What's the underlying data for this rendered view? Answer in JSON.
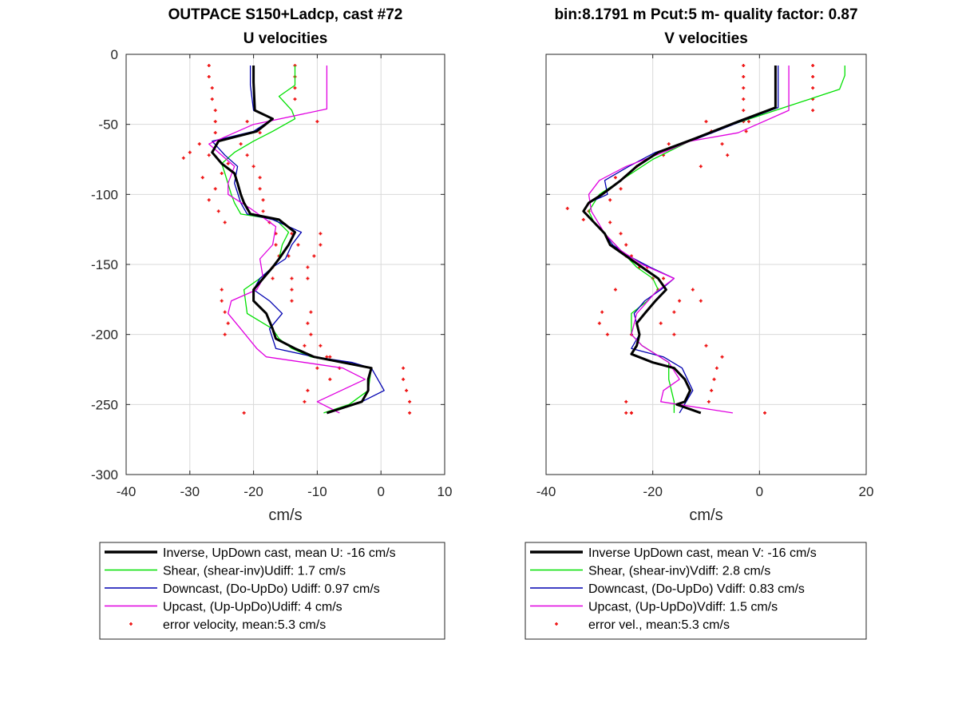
{
  "chart_data": [
    {
      "type": "line",
      "title": [
        "OUTPACE S150+Ladcp, cast #72",
        "U velocities"
      ],
      "xlabel": "cm/s",
      "ylabel": "",
      "xlim": [
        -40,
        10
      ],
      "ylim": [
        -300,
        0
      ],
      "xticks": [
        -40,
        -30,
        -20,
        -10,
        0,
        10
      ],
      "yticks": [
        0,
        -50,
        -100,
        -150,
        -200,
        -250,
        -300
      ],
      "xtick_labels": [
        "-40",
        "-30",
        "-20",
        "-10",
        "0",
        "10"
      ],
      "ytick_labels": [
        "0",
        "-50",
        "-100",
        "-150",
        "-200",
        "-250",
        "-300"
      ],
      "grid": true,
      "legend_position": "below",
      "series": [
        {
          "name": "Inverse, UpDown cast, mean U:  -16 cm/s",
          "color": "#000000",
          "style": "line-thick",
          "x": [
            -20,
            -20,
            -19.8,
            -17,
            -19.5,
            -25.5,
            -26.5,
            -25,
            -23,
            -22.5,
            -22,
            -21.5,
            -20.5,
            -16,
            -13.5,
            -14.5,
            -16,
            -17,
            -18.5,
            -20,
            -20,
            -18,
            -17,
            -16.5,
            -13.5,
            -10.5,
            -6,
            -1.5,
            -2,
            -2,
            -3,
            -8.5
          ],
          "y": [
            -8,
            -20,
            -40,
            -46,
            -55,
            -62,
            -70,
            -78,
            -85,
            -92,
            -100,
            -106,
            -114,
            -118,
            -127,
            -136,
            -146,
            -152,
            -160,
            -168,
            -176,
            -185,
            -196,
            -203,
            -210,
            -216,
            -220,
            -224,
            -232,
            -240,
            -248,
            -256
          ]
        },
        {
          "name": "Shear, (shear-inv)Udiff:  1.7 cm/s",
          "color": "#00e000",
          "style": "line",
          "x": [
            -13.5,
            -13.5,
            -16,
            -14,
            -13.5,
            -17,
            -20,
            -23,
            -25,
            -24.5,
            -23.5,
            -23,
            -22,
            -16.5,
            -14.5,
            -15.5,
            -16,
            -17,
            -19,
            -21.5,
            -21,
            -17,
            -16,
            -14,
            -11,
            -6,
            -1.5,
            -2,
            -5,
            -9
          ],
          "y": [
            -8,
            -22,
            -30,
            -40,
            -46,
            -55,
            -62,
            -70,
            -78,
            -85,
            -100,
            -106,
            -114,
            -118,
            -127,
            -136,
            -146,
            -152,
            -160,
            -168,
            -185,
            -196,
            -203,
            -210,
            -216,
            -220,
            -224,
            -240,
            -250,
            -256
          ]
        },
        {
          "name": "Downcast, (Do-UpDo) Udiff:  0.97 cm/s",
          "color": "#0000b0",
          "style": "line",
          "x": [
            -20.5,
            -20.5,
            -20,
            -17,
            -20,
            -26.5,
            -24.5,
            -22.5,
            -23,
            -22,
            -21,
            -17,
            -12.5,
            -14,
            -15,
            -17,
            -19,
            -20,
            -17.5,
            -15.5,
            -17.5,
            -16.5,
            -10.5,
            -4.5,
            -1.5,
            0.5,
            -3,
            -8.5
          ],
          "y": [
            -8,
            -22,
            -40,
            -46,
            -55,
            -62,
            -72,
            -80,
            -92,
            -106,
            -114,
            -118,
            -127,
            -136,
            -146,
            -152,
            -160,
            -168,
            -176,
            -185,
            -196,
            -210,
            -216,
            -220,
            -224,
            -240,
            -248,
            -256
          ]
        },
        {
          "name": "Upcast, (Up-UpDo)Udiff:  4 cm/s",
          "color": "#e000e0",
          "style": "line",
          "x": [
            -8.5,
            -8.5,
            -20,
            -27,
            -25.5,
            -23,
            -24,
            -24,
            -20.5,
            -16.5,
            -17,
            -19,
            -18.5,
            -19.5,
            -23.5,
            -24,
            -22,
            -19.5,
            -18,
            -12,
            -6,
            -2.5,
            -10,
            -6.5
          ],
          "y": [
            -8,
            -39,
            -50,
            -64,
            -70,
            -80,
            -92,
            -100,
            -110,
            -123,
            -136,
            -146,
            -160,
            -168,
            -176,
            -185,
            -196,
            -210,
            -216,
            -220,
            -224,
            -232,
            -248,
            -256
          ]
        },
        {
          "name": "error velocity, mean:5.3 cm/s",
          "color": "#ee1111",
          "style": "points",
          "x": [
            -27,
            -27,
            -26.5,
            -26.5,
            -26,
            -26,
            -21,
            -13.5,
            -13.5,
            -13.5,
            -13.5,
            -10,
            -26,
            -19,
            -28.5,
            -22,
            -27,
            -21,
            -30,
            -24,
            -31,
            -25,
            -20,
            -28,
            -19,
            -26,
            -19,
            -27,
            -18.5,
            -25.5,
            -18.5,
            -24.5,
            -17.5,
            -16.5,
            -14,
            -13,
            -9.5,
            -16.5,
            -9.5,
            -16,
            -14.5,
            -10.5,
            -17,
            -11.5,
            -17,
            -11.5,
            -14,
            -25,
            -14,
            -25,
            -14,
            -24.5,
            -11,
            -24,
            -11.5,
            -24.5,
            -11,
            -12,
            -9.5,
            -8,
            -6.5,
            -8.5,
            -10,
            3.5,
            -8,
            3.5,
            -11.5,
            4,
            -12,
            4.5,
            -21.5,
            4.5
          ],
          "y": [
            -8,
            -16,
            -24,
            -32,
            -40,
            -48,
            -48,
            -8,
            -16,
            -24,
            -32,
            -48,
            -56,
            -56,
            -64,
            -64,
            -72,
            -72,
            -70,
            -78,
            -74,
            -85,
            -80,
            -88,
            -88,
            -96,
            -96,
            -104,
            -104,
            -112,
            -112,
            -120,
            -120,
            -128,
            -128,
            -136,
            -128,
            -136,
            -136,
            -144,
            -144,
            -144,
            -152,
            -152,
            -160,
            -160,
            -160,
            -168,
            -168,
            -176,
            -176,
            -184,
            -184,
            -192,
            -192,
            -200,
            -200,
            -208,
            -208,
            -216,
            -224,
            -216,
            -224,
            -224,
            -232,
            -232,
            -240,
            -240,
            -248,
            -248,
            -256,
            -256
          ]
        }
      ]
    },
    {
      "type": "line",
      "title": [
        "bin:8.1791 m  Pcut:5 m- quality factor:  0.87",
        "V velocities"
      ],
      "xlabel": "cm/s",
      "ylabel": "",
      "xlim": [
        -40,
        20
      ],
      "ylim": [
        -300,
        0
      ],
      "xticks": [
        -40,
        -20,
        0,
        20
      ],
      "yticks": [
        0,
        -50,
        -100,
        -150,
        -200,
        -250,
        -300
      ],
      "xtick_labels": [
        "-40",
        "-20",
        "0",
        "20"
      ],
      "ytick_labels": [],
      "grid": true,
      "legend_position": "below",
      "series": [
        {
          "name": "Inverse UpDown cast, mean V:  -16 cm/s",
          "color": "#000000",
          "style": "line-thick",
          "x": [
            3,
            3,
            3,
            -4,
            -12,
            -19,
            -23,
            -26,
            -29.5,
            -32,
            -33,
            -31,
            -29,
            -28,
            -25,
            -22,
            -19,
            -17.5,
            -19.5,
            -21.5,
            -23,
            -22.5,
            -23,
            -24,
            -20,
            -16,
            -14,
            -13,
            -14,
            -15.5,
            -11
          ],
          "y": [
            -8,
            -25,
            -38,
            -48,
            -60,
            -70,
            -80,
            -90,
            -100,
            -106,
            -112,
            -120,
            -128,
            -136,
            -144,
            -152,
            -160,
            -168,
            -176,
            -185,
            -192,
            -200,
            -208,
            -214,
            -220,
            -224,
            -232,
            -240,
            -248,
            -250,
            -256
          ]
        },
        {
          "name": "Shear, (shear-inv)Vdiff:  2.8 cm/s",
          "color": "#00e000",
          "style": "line",
          "x": [
            16,
            16,
            15,
            3,
            -5,
            -12,
            -20,
            -26,
            -30,
            -32,
            -31,
            -29,
            -27,
            -25,
            -23,
            -20,
            -19,
            -21,
            -24,
            -24,
            -22,
            -17,
            -17,
            -16,
            -16
          ],
          "y": [
            -8,
            -15,
            -25,
            -40,
            -50,
            -60,
            -75,
            -90,
            -100,
            -112,
            -120,
            -128,
            -136,
            -144,
            -152,
            -160,
            -168,
            -176,
            -185,
            -200,
            -208,
            -220,
            -232,
            -248,
            -256
          ]
        },
        {
          "name": "Downcast, (Do-UpDo) Vdiff:  0.83 cm/s",
          "color": "#0000b0",
          "style": "line",
          "x": [
            3.5,
            3.5,
            3.5,
            -3.5,
            -11.5,
            -19.5,
            -24.5,
            -29,
            -28.5,
            -32,
            -33,
            -31,
            -29,
            -27.5,
            -24.5,
            -20.5,
            -16,
            -18.5,
            -21.5,
            -23.5,
            -22.5,
            -24,
            -18,
            -14.5,
            -12.5,
            -15
          ],
          "y": [
            -8,
            -25,
            -38,
            -48,
            -60,
            -70,
            -80,
            -90,
            -100,
            -106,
            -112,
            -120,
            -128,
            -136,
            -144,
            -152,
            -160,
            -168,
            -176,
            -185,
            -200,
            -210,
            -216,
            -224,
            -240,
            -256
          ]
        },
        {
          "name": "Upcast, (Up-UpDo)Vdiff:  1.5 cm/s",
          "color": "#e000e0",
          "style": "line",
          "x": [
            5.5,
            5.5,
            5.5,
            -4,
            -13,
            -18,
            -25,
            -30,
            -32,
            -31.5,
            -29,
            -26,
            -22,
            -16,
            -19.5,
            -23,
            -24,
            -22,
            -17,
            -15,
            -18,
            -18.5,
            -5
          ],
          "y": [
            -8,
            -25,
            -40,
            -56,
            -62,
            -70,
            -80,
            -90,
            -100,
            -112,
            -128,
            -140,
            -150,
            -160,
            -170,
            -185,
            -200,
            -208,
            -220,
            -232,
            -240,
            -248,
            -256
          ]
        },
        {
          "name": "error vel., mean:5.3 cm/s",
          "color": "#ee1111",
          "style": "points",
          "x": [
            -3,
            -3,
            -3,
            -3,
            -3,
            -3,
            10,
            10,
            10,
            10,
            10,
            -10,
            -9,
            -2,
            -2.5,
            -7,
            -17,
            -6,
            -18,
            -11,
            -23,
            -27,
            -26,
            -28,
            -32,
            -36,
            -33,
            -28,
            -26,
            -25,
            -25,
            -24,
            -22.5,
            -21,
            -20,
            -18,
            -19,
            -27,
            -15,
            -12.5,
            -11,
            -29.5,
            -16,
            -30,
            -18.5,
            -28.5,
            -24,
            -16,
            -10,
            -7,
            -8,
            -8.5,
            -9,
            -9.5,
            -25,
            -24,
            -24,
            -25,
            1
          ],
          "y": [
            -8,
            -16,
            -24,
            -32,
            -40,
            -48,
            -8,
            -16,
            -24,
            -32,
            -40,
            -48,
            -55,
            -48,
            -55,
            -64,
            -64,
            -72,
            -72,
            -80,
            -80,
            -88,
            -96,
            -104,
            -112,
            -110,
            -118,
            -120,
            -128,
            -136,
            -144,
            -144,
            -152,
            -152,
            -160,
            -160,
            -168,
            -168,
            -176,
            -168,
            -176,
            -184,
            -184,
            -192,
            -192,
            -200,
            -200,
            -200,
            -208,
            -216,
            -224,
            -232,
            -240,
            -248,
            -248,
            -256,
            -256,
            -256,
            -256
          ]
        }
      ]
    }
  ]
}
